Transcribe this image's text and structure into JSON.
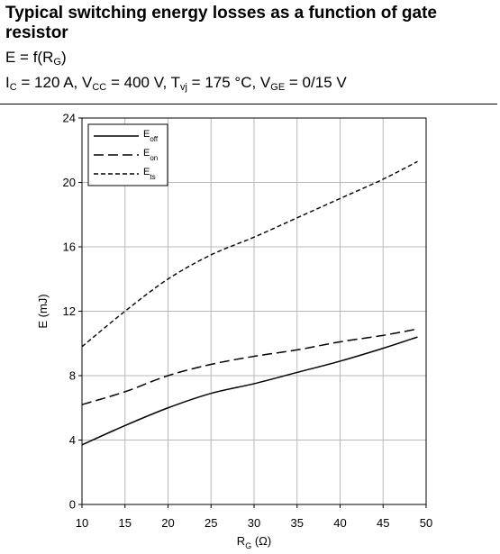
{
  "header": {
    "title": "Typical switching energy losses as a function of gate resistor",
    "eq1": {
      "pre": "E = f(R",
      "sub": "G",
      "post": ")"
    },
    "eq2": [
      {
        "t": "I"
      },
      {
        "s": "C"
      },
      {
        "t": " = 120 A, V"
      },
      {
        "s": "CC"
      },
      {
        "t": " = 400 V, T"
      },
      {
        "s": "vj"
      },
      {
        "t": " = 175 °C, V"
      },
      {
        "s": "GE"
      },
      {
        "t": " = 0/15 V"
      }
    ]
  },
  "chart_data": {
    "type": "line",
    "title": "Typical switching energy losses as a function of gate resistor",
    "xlabel": "R",
    "xlabel_sub": "G",
    "xlabel_unit": " (Ω)",
    "ylabel": "E (mJ)",
    "xlim": [
      10,
      50
    ],
    "ylim": [
      0,
      24
    ],
    "xticks": [
      10,
      15,
      20,
      25,
      30,
      35,
      40,
      45,
      50
    ],
    "yticks": [
      0,
      4,
      8,
      12,
      16,
      20,
      24
    ],
    "grid": true,
    "legend_position": "top-left",
    "series": [
      {
        "name": "E",
        "name_sub": "off",
        "style": "solid",
        "x": [
          10,
          15,
          20,
          25,
          30,
          35,
          40,
          45,
          49
        ],
        "y": [
          3.7,
          4.9,
          6.0,
          6.9,
          7.5,
          8.2,
          8.9,
          9.7,
          10.4
        ]
      },
      {
        "name": "E",
        "name_sub": "on",
        "style": "dashed",
        "x": [
          10,
          15,
          20,
          25,
          30,
          35,
          40,
          45,
          49
        ],
        "y": [
          6.2,
          7.0,
          8.0,
          8.7,
          9.2,
          9.6,
          10.1,
          10.5,
          10.9
        ]
      },
      {
        "name": "E",
        "name_sub": "ts",
        "style": "short-dashed",
        "x": [
          10,
          15,
          20,
          25,
          30,
          35,
          40,
          45,
          49
        ],
        "y": [
          9.8,
          12.0,
          14.0,
          15.5,
          16.6,
          17.8,
          19.0,
          20.2,
          21.3
        ]
      }
    ]
  }
}
